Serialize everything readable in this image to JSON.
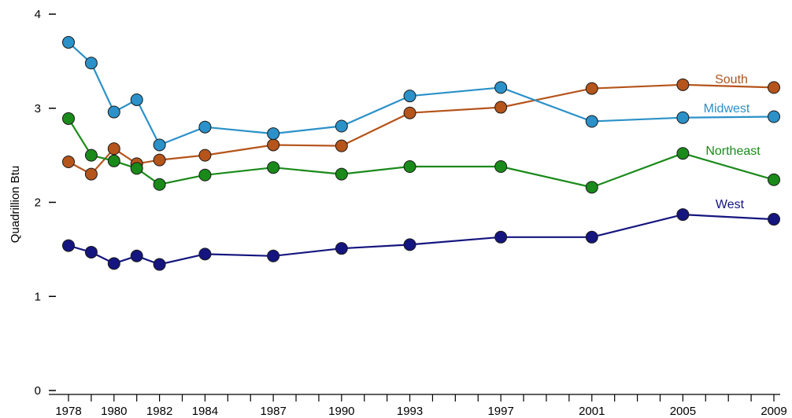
{
  "chart_data": {
    "type": "line",
    "title": "",
    "xlabel": "",
    "ylabel": "Quadrillion Btu",
    "ylim": [
      0,
      4
    ],
    "xlim": [
      1978,
      2009
    ],
    "yticks": [
      0,
      1,
      2,
      3,
      4
    ],
    "xtick_labels": [
      "1978",
      "1980",
      "1982",
      "1984",
      "1987",
      "1990",
      "1993",
      "1997",
      "2001",
      "2005",
      "2009"
    ],
    "grid": false,
    "legend": "labels at line ends",
    "x": [
      1978,
      1979,
      1980,
      1981,
      1982,
      1984,
      1987,
      1990,
      1993,
      1997,
      2001,
      2005,
      2009
    ],
    "series": [
      {
        "name": "South",
        "color": "#b5541b",
        "values": [
          2.43,
          2.3,
          2.57,
          2.41,
          2.45,
          2.5,
          2.61,
          2.6,
          2.95,
          3.01,
          3.21,
          3.25,
          3.22
        ]
      },
      {
        "name": "Midwest",
        "color": "#2b91c8",
        "values": [
          3.7,
          3.48,
          2.96,
          3.09,
          2.61,
          2.8,
          2.73,
          2.81,
          3.13,
          3.22,
          2.86,
          2.9,
          2.91
        ]
      },
      {
        "name": "Northeast",
        "color": "#1a8a1a",
        "values": [
          2.89,
          2.5,
          2.44,
          2.36,
          2.19,
          2.29,
          2.37,
          2.3,
          2.38,
          2.38,
          2.16,
          2.52,
          2.24
        ]
      },
      {
        "name": "West",
        "color": "#15157f",
        "values": [
          1.54,
          1.47,
          1.35,
          1.43,
          1.34,
          1.45,
          1.43,
          1.51,
          1.55,
          1.63,
          1.63,
          1.87,
          1.82
        ]
      }
    ]
  }
}
